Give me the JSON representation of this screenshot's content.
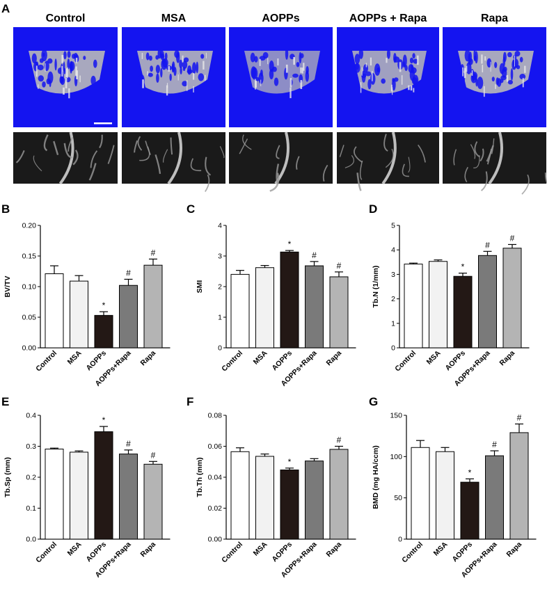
{
  "figure": {
    "panel_a": {
      "letter": "A",
      "groups": [
        "Control",
        "MSA",
        "AOPPs",
        "AOPPs + Rapa",
        "Rapa"
      ],
      "render_background": "#1414f0",
      "ct_background": "#1a1a1a"
    }
  },
  "colors": {
    "Control": "#ffffff",
    "MSA": "#f2f2f2",
    "AOPPs": "#231815",
    "AOPPs+Rapa": "#7a7a7a",
    "Rapa": "#b4b4b4"
  },
  "chart_data": [
    {
      "panel": "B",
      "type": "bar",
      "ylabel": "BV/TV",
      "categories": [
        "Control",
        "MSA",
        "AOPPs",
        "AOPPs+Rapa",
        "Rapa"
      ],
      "values": [
        0.121,
        0.109,
        0.053,
        0.102,
        0.135
      ],
      "errors": [
        0.013,
        0.009,
        0.006,
        0.01,
        0.01
      ],
      "marks": [
        "",
        "",
        "*",
        "#",
        "#"
      ],
      "ylim": [
        0,
        0.2
      ],
      "yticks": [
        "0.00",
        "0.05",
        "0.10",
        "0.15",
        "0.20"
      ]
    },
    {
      "panel": "C",
      "type": "bar",
      "ylabel": "SMI",
      "categories": [
        "Control",
        "MSA",
        "AOPPs",
        "AOPPs+Rapa",
        "Rapa"
      ],
      "values": [
        2.4,
        2.62,
        3.13,
        2.68,
        2.32
      ],
      "errors": [
        0.13,
        0.07,
        0.05,
        0.14,
        0.16
      ],
      "marks": [
        "",
        "",
        "*",
        "#",
        "#"
      ],
      "ylim": [
        0,
        4
      ],
      "yticks": [
        "0",
        "1",
        "2",
        "3",
        "4"
      ]
    },
    {
      "panel": "D",
      "type": "bar",
      "ylabel": "Tb.N (1/mm)",
      "categories": [
        "Control",
        "MSA",
        "AOPPs",
        "AOPPs+Rapa",
        "Rapa"
      ],
      "values": [
        3.42,
        3.53,
        2.92,
        3.77,
        4.07
      ],
      "errors": [
        0.04,
        0.06,
        0.13,
        0.17,
        0.15
      ],
      "marks": [
        "",
        "",
        "*",
        "#",
        "#"
      ],
      "ylim": [
        0,
        5
      ],
      "yticks": [
        "0",
        "1",
        "2",
        "3",
        "4",
        "5"
      ]
    },
    {
      "panel": "E",
      "type": "bar",
      "ylabel": "Tb.Sp (mm)",
      "categories": [
        "Control",
        "MSA",
        "AOPPs",
        "AOPPs+Rapa",
        "Rapa"
      ],
      "values": [
        0.291,
        0.281,
        0.347,
        0.275,
        0.242
      ],
      "errors": [
        0.003,
        0.004,
        0.017,
        0.013,
        0.009
      ],
      "marks": [
        "",
        "",
        "*",
        "#",
        "#"
      ],
      "ylim": [
        0,
        0.4
      ],
      "yticks": [
        "0.0",
        "0.1",
        "0.2",
        "0.3",
        "0.4"
      ]
    },
    {
      "panel": "F",
      "type": "bar",
      "ylabel": "Tb.Th (mm)",
      "categories": [
        "Control",
        "MSA",
        "AOPPs",
        "AOPPs+Rapa",
        "Rapa"
      ],
      "values": [
        0.0565,
        0.0535,
        0.0447,
        0.0505,
        0.058
      ],
      "errors": [
        0.0025,
        0.0015,
        0.0012,
        0.0015,
        0.002
      ],
      "marks": [
        "",
        "",
        "*",
        "",
        "#"
      ],
      "ylim": [
        0,
        0.08
      ],
      "yticks": [
        "0.00",
        "0.02",
        "0.04",
        "0.06",
        "0.08"
      ]
    },
    {
      "panel": "G",
      "type": "bar",
      "ylabel": "BMD (mg HA/ccm)",
      "categories": [
        "Control",
        "MSA",
        "AOPPs",
        "AOPPs+Rapa",
        "Rapa"
      ],
      "values": [
        111,
        106,
        69,
        101,
        129
      ],
      "errors": [
        8.5,
        5,
        4,
        6,
        10.5
      ],
      "marks": [
        "",
        "",
        "*",
        "#",
        "#"
      ],
      "ylim": [
        0,
        150
      ],
      "yticks": [
        "0",
        "50",
        "100",
        "150"
      ]
    }
  ]
}
